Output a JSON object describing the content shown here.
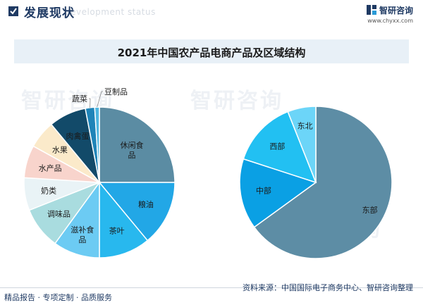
{
  "header": {
    "title": "发展现状",
    "subtitle": "development status",
    "brand": "智研咨询",
    "url": "www.chyxx.com"
  },
  "title": "2021年中国农产品电商产品及区域结构",
  "colors": {
    "navy": "#1f3a63",
    "title_bg": "#e8f0f7"
  },
  "chart_data": [
    {
      "type": "pie",
      "title": "",
      "categories": [
        "休闲食品",
        "粮油",
        "茶叶",
        "滋补食品",
        "调味品",
        "奶类",
        "水产品",
        "水果",
        "肉禽蛋",
        "蔬菜",
        "豆制品"
      ],
      "values": [
        25,
        14,
        11,
        10,
        9,
        7,
        7,
        6,
        8,
        2,
        1
      ],
      "colors": [
        "#5b8ca3",
        "#22a7e6",
        "#28b8ee",
        "#6ccbf3",
        "#a9dcdf",
        "#e9f3f6",
        "#f8d4cc",
        "#fbeaca",
        "#124a69",
        "#1f84b8",
        "#4eb6e0"
      ]
    },
    {
      "type": "pie",
      "title": "",
      "categories": [
        "东部",
        "中部",
        "西部",
        "东北"
      ],
      "values": [
        65,
        15,
        14,
        6
      ],
      "colors": [
        "#5d8da5",
        "#0aa0e4",
        "#22c0f2",
        "#6cd5f8"
      ]
    }
  ],
  "footer": {
    "left": "精品报告 · 专项定制 · 品质服务",
    "right": "资料来源：中国国际电子商务中心、智研咨询整理"
  }
}
